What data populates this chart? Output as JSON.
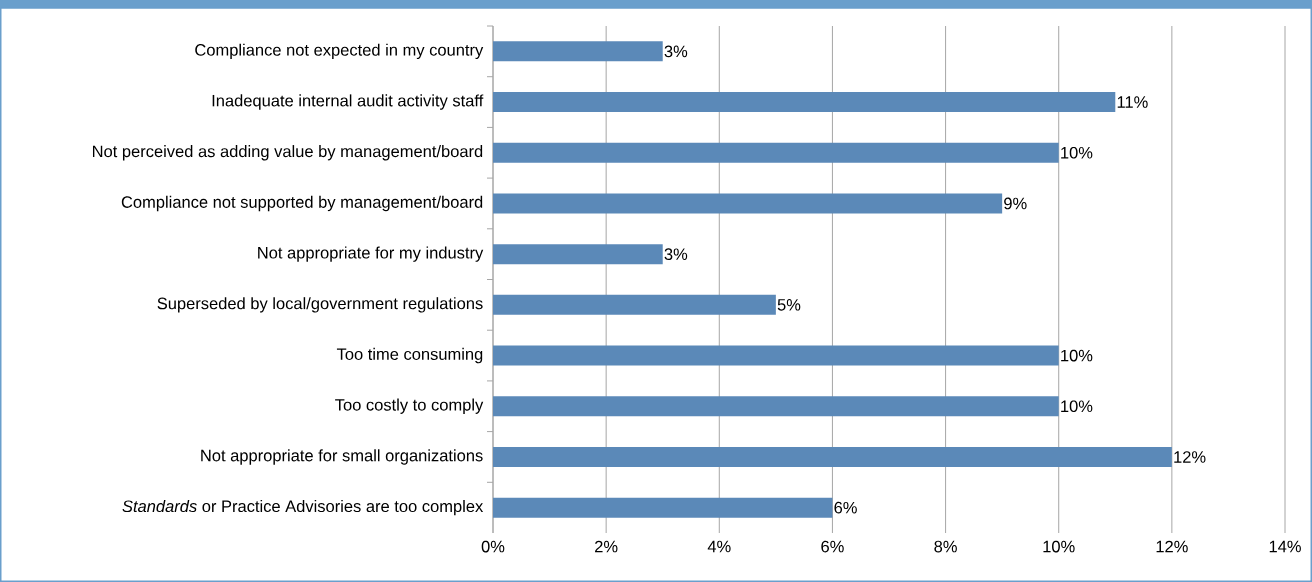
{
  "chart_data": {
    "type": "bar",
    "orientation": "horizontal",
    "categories": [
      "Compliance not expected in my country",
      "Inadequate internal audit activity staff",
      "Not perceived as adding value by management/board",
      "Compliance not supported by management/board",
      "Not appropriate for my industry",
      "Superseded by local/government regulations",
      "Too time consuming",
      "Too costly to comply",
      "Not appropriate for small organizations",
      "*Standards* or Practice Advisories are too complex"
    ],
    "values": [
      3,
      11,
      10,
      9,
      3,
      5,
      10,
      10,
      12,
      6
    ],
    "value_labels": [
      "3%",
      "11%",
      "10%",
      "9%",
      "3%",
      "5%",
      "10%",
      "10%",
      "12%",
      "6%"
    ],
    "color": "#5b89b8",
    "xlim": [
      0,
      14
    ],
    "xticks": [
      {
        "value": 0,
        "label": "0%"
      },
      {
        "value": 2,
        "label": "2%"
      },
      {
        "value": 4,
        "label": "4%"
      },
      {
        "value": 6,
        "label": "6%"
      },
      {
        "value": 8,
        "label": "8%"
      },
      {
        "value": 10,
        "label": "10%"
      },
      {
        "value": 12,
        "label": "12%"
      },
      {
        "value": 14,
        "label": "14%"
      }
    ],
    "grid": "x"
  }
}
